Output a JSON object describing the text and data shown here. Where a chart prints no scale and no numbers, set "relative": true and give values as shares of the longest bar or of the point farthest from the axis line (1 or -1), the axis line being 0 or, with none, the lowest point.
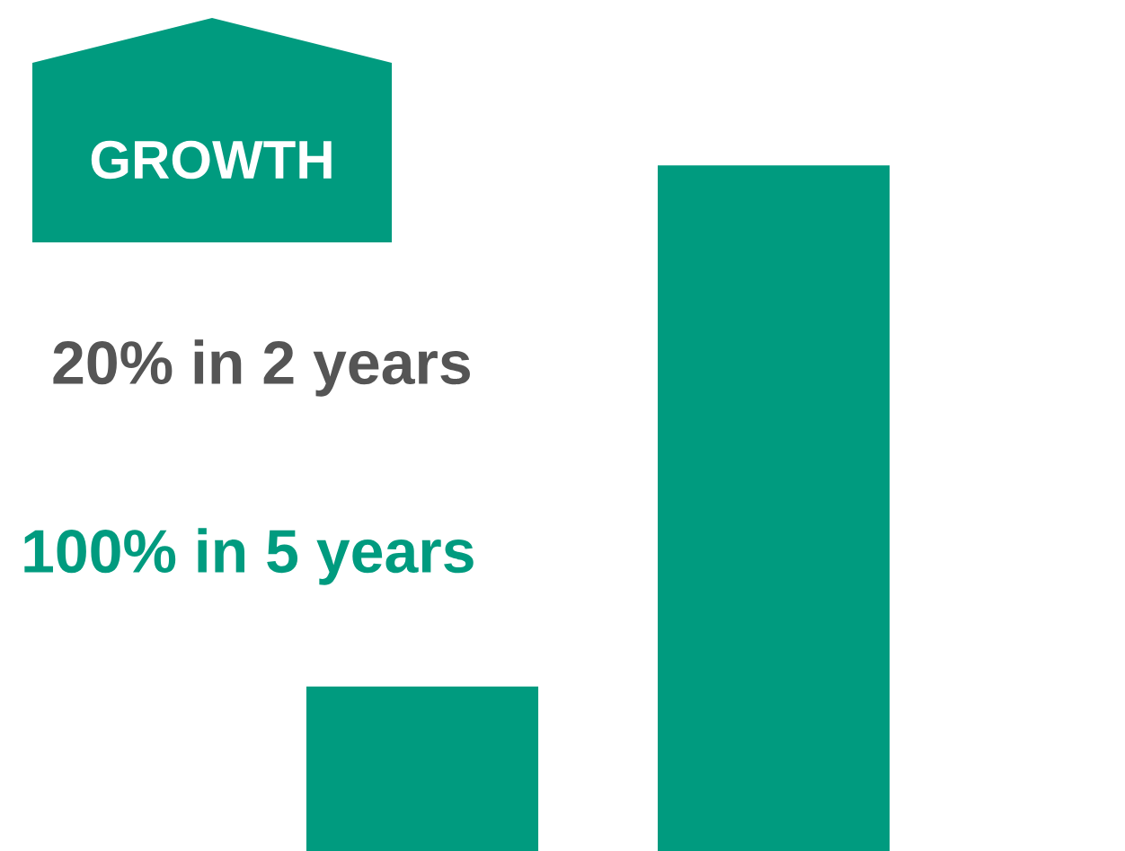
{
  "chart_data": {
    "type": "bar",
    "title": "GROWTH",
    "categories": [
      null,
      null
    ],
    "values": [
      0.24,
      1
    ],
    "relative": true,
    "color": "#009b7f",
    "annotations": [
      "20% in 2 years",
      "100% in 5 years"
    ]
  }
}
